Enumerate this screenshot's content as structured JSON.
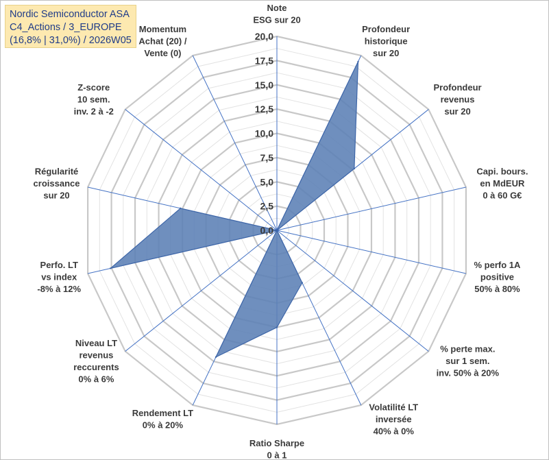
{
  "title_box": {
    "line1": "Nordic Semiconductor ASA",
    "line2": "C4_Actions / 3_EUROPE",
    "line3": "(16,8% | 31,0%) / 2026W05"
  },
  "colors": {
    "fill": "#5b7fb5",
    "stroke": "#3e66a8",
    "grid_major": "#c8c8c8",
    "grid_minor": "#e2e2e2",
    "spoke": "#4472c4",
    "title_bg": "#fde9b0",
    "title_text": "#1f3c88"
  },
  "chart_data": {
    "type": "radar",
    "rmin": 0,
    "rmax": 20,
    "major_step": 2.5,
    "minor_step": 1.25,
    "tick_labels": [
      "0,0",
      "2,5",
      "5,0",
      "7,5",
      "10,0",
      "12,5",
      "15,0",
      "17,5",
      "20,0"
    ],
    "categories": [
      [
        "Note",
        "ESG sur 20"
      ],
      [
        "Profondeur",
        "historique",
        "sur 20"
      ],
      [
        "Profondeur",
        "revenus",
        "sur 20"
      ],
      [
        "Capi. bours.",
        "en MdEUR",
        "0 à 60 G€"
      ],
      [
        "% perfo 1A",
        "positive",
        "50% à 80%"
      ],
      [
        "% perte max.",
        "sur 1 sem.",
        "inv. 50% à 20%"
      ],
      [
        "Volatilité LT",
        "inversée",
        "40% à 0%"
      ],
      [
        "Ratio Sharpe",
        "0 à 1"
      ],
      [
        "Rendement LT",
        "0% à 20%"
      ],
      [
        "Niveau LT",
        "revenus",
        "reccurents",
        "0% à 6%"
      ],
      [
        "Perfo. LT",
        "vs index",
        "-8% à 12%"
      ],
      [
        "Régularité",
        "croissance",
        "sur 20"
      ],
      [
        "Z-score",
        "10 sem.",
        "inv. 2 à -2"
      ],
      [
        "Momentum",
        "Achat (20) /",
        "Vente (0)"
      ]
    ],
    "values": [
      0,
      19.3,
      10.2,
      0,
      0,
      0,
      6.0,
      10.0,
      14.5,
      0,
      17.6,
      10.2,
      0,
      0
    ],
    "grid": true,
    "legend": "none"
  }
}
